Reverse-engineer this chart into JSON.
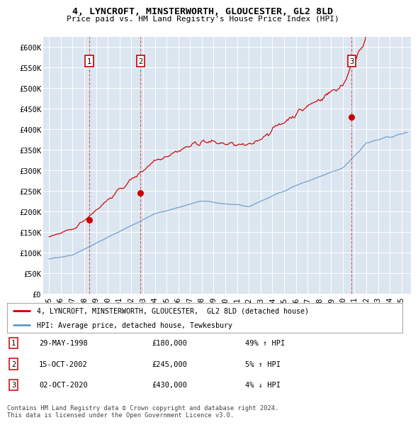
{
  "title": "4, LYNCROFT, MINSTERWORTH, GLOUCESTER, GL2 8LD",
  "subtitle": "Price paid vs. HM Land Registry's House Price Index (HPI)",
  "xlim": [
    1994.5,
    2025.8
  ],
  "ylim": [
    0,
    625000
  ],
  "yticks": [
    0,
    50000,
    100000,
    150000,
    200000,
    250000,
    300000,
    350000,
    400000,
    450000,
    500000,
    550000,
    600000
  ],
  "ytick_labels": [
    "£0",
    "£50K",
    "£100K",
    "£150K",
    "£200K",
    "£250K",
    "£300K",
    "£350K",
    "£400K",
    "£450K",
    "£500K",
    "£550K",
    "£600K"
  ],
  "xtick_years": [
    1995,
    1996,
    1997,
    1998,
    1999,
    2000,
    2001,
    2002,
    2003,
    2004,
    2005,
    2006,
    2007,
    2008,
    2009,
    2010,
    2011,
    2012,
    2013,
    2014,
    2015,
    2016,
    2017,
    2018,
    2019,
    2020,
    2021,
    2022,
    2023,
    2024,
    2025
  ],
  "sale_dates": [
    1998.41,
    2002.79,
    2020.75
  ],
  "sale_prices": [
    180000,
    245000,
    430000
  ],
  "sale_labels": [
    "1",
    "2",
    "3"
  ],
  "sale_info": [
    {
      "num": "1",
      "date": "29-MAY-1998",
      "price": "£180,000",
      "hpi": "49% ↑ HPI"
    },
    {
      "num": "2",
      "date": "15-OCT-2002",
      "price": "£245,000",
      "hpi": "5% ↑ HPI"
    },
    {
      "num": "3",
      "date": "02-OCT-2020",
      "price": "£430,000",
      "hpi": "4% ↓ HPI"
    }
  ],
  "legend_property": "4, LYNCROFT, MINSTERWORTH, GLOUCESTER,  GL2 8LD (detached house)",
  "legend_hpi": "HPI: Average price, detached house, Tewkesbury",
  "red_color": "#cc0000",
  "blue_color": "#6699cc",
  "background_color": "#ffffff",
  "plot_bg_color": "#dce6f0",
  "footnote": "Contains HM Land Registry data © Crown copyright and database right 2024.\nThis data is licensed under the Open Government Licence v3.0."
}
